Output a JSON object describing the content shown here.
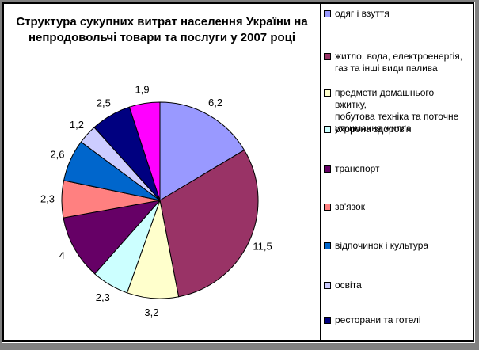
{
  "window": {
    "background_color": "#808080",
    "card_background": "#FFFFFF",
    "frame_color": "#000000"
  },
  "title": {
    "text": "Структура сукупних витрат населення України на\nнепродовольчі товари та послуги у 2007 році"
  },
  "chart_data": {
    "type": "pie",
    "title": "Структура сукупних витрат населення України на непродовольчі товари та послуги у 2007 році",
    "start_angle_deg": 0,
    "direction": "clockwise",
    "decimal_separator": ",",
    "data_labels": "outside",
    "legend_position": "right",
    "slices": [
      {
        "label": "одяг і взуття",
        "value": 6.2,
        "display": "6,2",
        "color": "#9999FF"
      },
      {
        "label": "житло, вода, електроенергія, газ та інші види палива",
        "value": 11.5,
        "display": "11,5",
        "color": "#993366"
      },
      {
        "label": "предмети домашнього вжитку, побутова техніка та поточне утримання житла",
        "value": 3.2,
        "display": "3,2",
        "color": "#FFFFCC"
      },
      {
        "label": "охорона здоров'я",
        "value": 2.3,
        "display": "2,3",
        "color": "#CCFFFF"
      },
      {
        "label": "транспорт",
        "value": 4,
        "display": "4",
        "color": "#660066"
      },
      {
        "label": "зв'язок",
        "value": 2.3,
        "display": "2,3",
        "color": "#FF8080"
      },
      {
        "label": "відпочинок і культура",
        "value": 2.6,
        "display": "2,6",
        "color": "#0066CC"
      },
      {
        "label": "освіта",
        "value": 1.2,
        "display": "1,2",
        "color": "#CCCCFF"
      },
      {
        "label": "ресторани та готелі",
        "value": 2.5,
        "display": "2,5",
        "color": "#000080"
      },
      {
        "label": "",
        "value": 1.9,
        "display": "1,9",
        "color": "#FF00FF"
      }
    ]
  },
  "legend": {
    "items": [
      {
        "label": "одяг і взуття",
        "color": "#9999FF"
      },
      {
        "label": "житло, вода, електроенергія,\nгаз та інші види палива",
        "color": "#993366"
      },
      {
        "label": "предмети домашнього вжитку,\nпобутова техніка та поточне\nутримання житла",
        "color": "#FFFFCC"
      },
      {
        "label": "охорона здоров'я",
        "color": "#CCFFFF"
      },
      {
        "label": "транспорт",
        "color": "#660066"
      },
      {
        "label": "зв'язок",
        "color": "#FF8080"
      },
      {
        "label": "відпочинок і культура",
        "color": "#0066CC"
      },
      {
        "label": "освіта",
        "color": "#CCCCFF"
      },
      {
        "label": "ресторани та готелі",
        "color": "#000080"
      }
    ]
  }
}
